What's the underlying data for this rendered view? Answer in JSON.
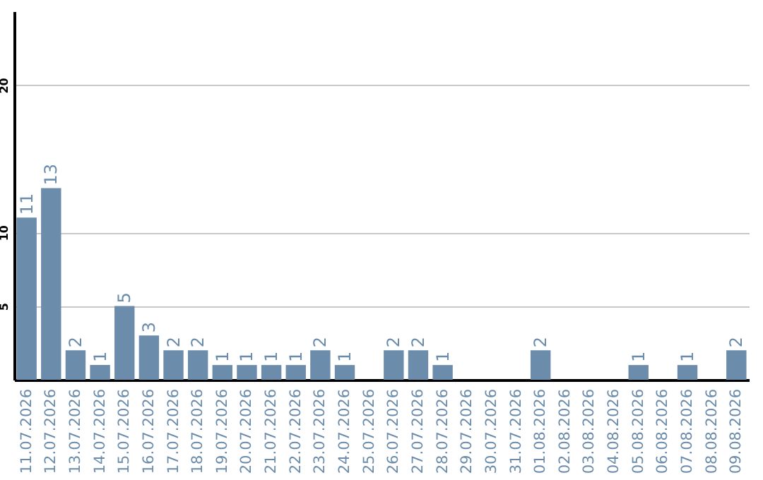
{
  "chart_data": {
    "type": "bar",
    "categories": [
      "11.07.2026",
      "12.07.2026",
      "13.07.2026",
      "14.07.2026",
      "15.07.2026",
      "16.07.2026",
      "17.07.2026",
      "18.07.2026",
      "19.07.2026",
      "20.07.2026",
      "21.07.2026",
      "22.07.2026",
      "23.07.2026",
      "24.07.2026",
      "25.07.2026",
      "26.07.2026",
      "27.07.2026",
      "28.07.2026",
      "29.07.2026",
      "30.07.2026",
      "31.07.2026",
      "01.08.2026",
      "02.08.2026",
      "03.08.2026",
      "04.08.2026",
      "05.08.2026",
      "06.08.2026",
      "07.08.2026",
      "08.08.2026",
      "09.08.2026"
    ],
    "values": [
      11,
      13,
      2,
      1,
      5,
      3,
      2,
      2,
      1,
      1,
      1,
      1,
      2,
      1,
      null,
      2,
      2,
      1,
      null,
      null,
      null,
      2,
      null,
      null,
      null,
      1,
      null,
      1,
      null,
      2
    ],
    "color": "#6b8cab",
    "ylim": [
      0,
      25
    ],
    "yticks": [
      5,
      10,
      20
    ],
    "grid": true,
    "data_labels": true
  }
}
